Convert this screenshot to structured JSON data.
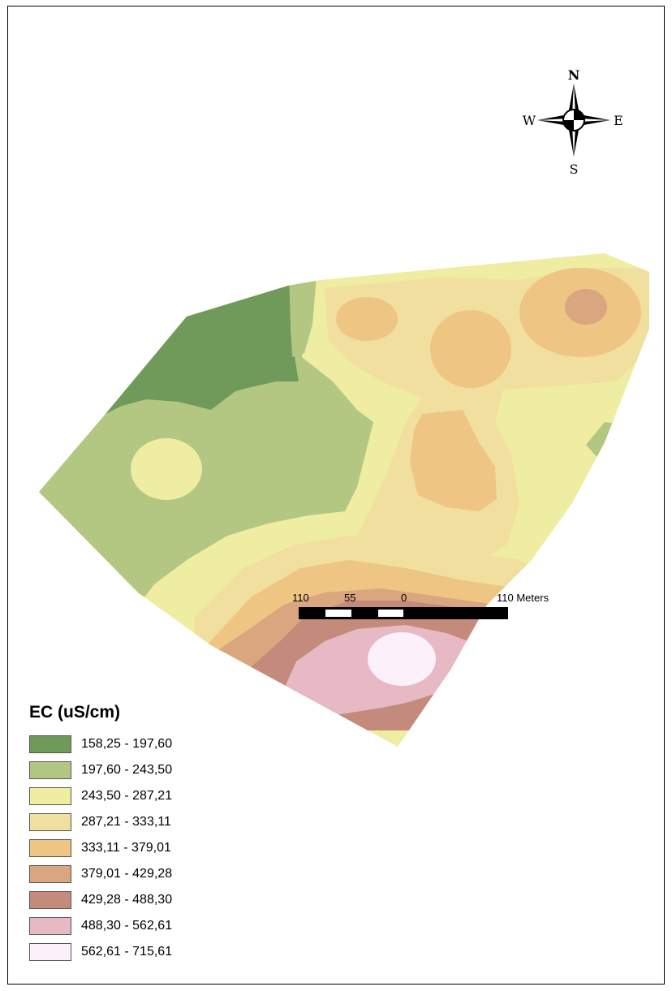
{
  "legend": {
    "title": "EC (uS/cm)",
    "classes": [
      {
        "label": "158,25 - 197,60",
        "color": "#6f9a59"
      },
      {
        "label": "197,60 - 243,50",
        "color": "#b3c682"
      },
      {
        "label": "243,50 - 287,21",
        "color": "#eeeda2"
      },
      {
        "label": "287,21 - 333,11",
        "color": "#f0df9e"
      },
      {
        "label": "333,11 - 379,01",
        "color": "#efc584"
      },
      {
        "label": "379,01 - 429,28",
        "color": "#d9a67f"
      },
      {
        "label": "429,28 - 488,30",
        "color": "#c48b7c"
      },
      {
        "label": "488,30 - 562,61",
        "color": "#e6b9c4"
      },
      {
        "label": "562,61 - 715,61",
        "color": "#fcf0fb"
      }
    ]
  },
  "compass": {
    "north": "N",
    "south": "S",
    "east": "E",
    "west": "W"
  },
  "scale_bar": {
    "labels": [
      "110",
      "55",
      "0",
      "110 Meters"
    ]
  }
}
